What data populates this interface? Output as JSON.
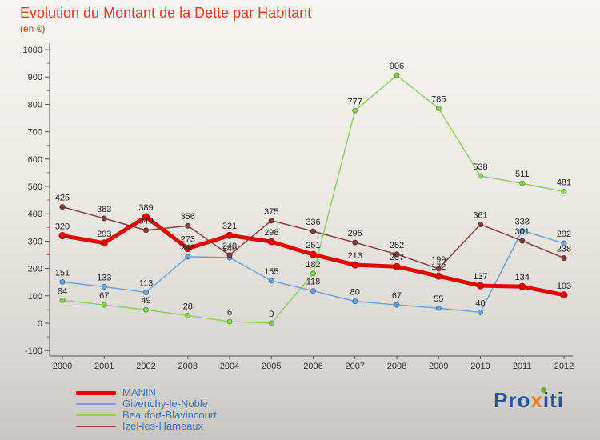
{
  "header": {
    "title": "Evolution du Montant de la Dette par Habitant",
    "subtitle": "(en €)"
  },
  "chart_data": {
    "type": "line",
    "title": "Evolution du Montant de la Dette par Habitant",
    "subtitle": "(en €)",
    "x": [
      2000,
      2001,
      2002,
      2003,
      2004,
      2005,
      2006,
      2007,
      2008,
      2009,
      2010,
      2011,
      2012
    ],
    "series": [
      {
        "name": "MANIN",
        "color": "#e10600",
        "dot_stroke": "#b00500",
        "stroke_width": 5,
        "values": [
          320,
          293,
          389,
          273,
          321,
          298,
          251,
          213,
          207,
          172,
          137,
          134,
          103
        ]
      },
      {
        "name": "Givenchy-le-Noble",
        "color": "#6fa3d8",
        "dot_stroke": "#3a78b5",
        "stroke_width": 1.5,
        "values": [
          151,
          133,
          113,
          243,
          240,
          155,
          118,
          80,
          67,
          55,
          40,
          338,
          292
        ]
      },
      {
        "name": "Beaufort-Blavincourt",
        "color": "#8ed063",
        "dot_stroke": "#57a82b",
        "stroke_width": 1.5,
        "values": [
          84,
          67,
          49,
          28,
          6,
          0,
          182,
          777,
          906,
          785,
          538,
          511,
          481
        ]
      },
      {
        "name": "Izel-les-Hameaux",
        "color": "#8a3d3d",
        "dot_stroke": "#6b2a2a",
        "stroke_width": 1.5,
        "values": [
          425,
          383,
          340,
          356,
          249,
          375,
          336,
          295,
          252,
          199,
          361,
          301,
          238
        ]
      }
    ],
    "xlabel": "",
    "ylabel": "",
    "ylim": [
      -100,
      1000
    ],
    "ytick_step": 100,
    "grid": false,
    "legend_position": "bottom-left"
  },
  "logo": {
    "text": "Proxiti",
    "pre": "Pro",
    "x": "x",
    "post": "iti"
  }
}
